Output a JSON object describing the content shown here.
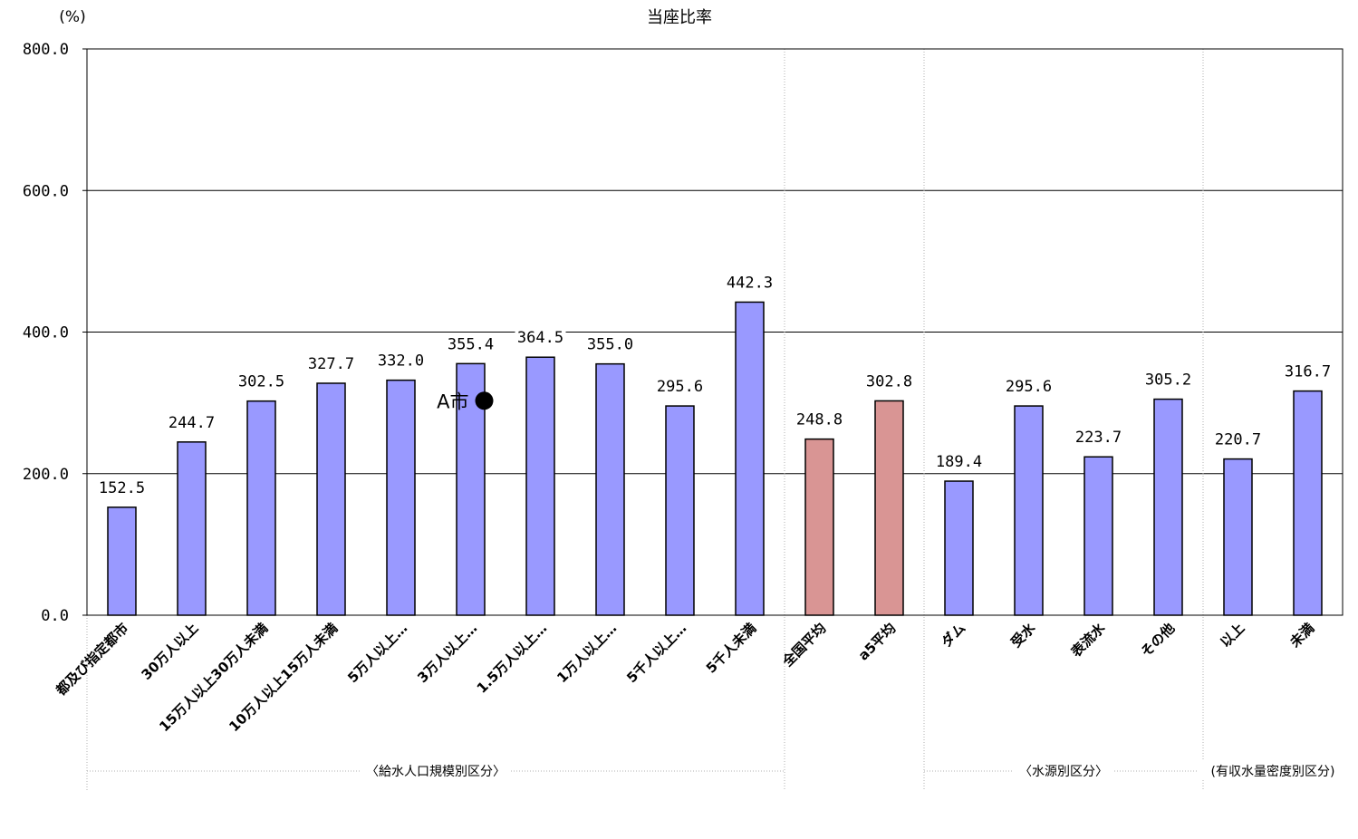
{
  "chart_data": {
    "type": "bar",
    "title": "当座比率",
    "ylabel": "(%)",
    "xlabel": "",
    "ylim": [
      0,
      800
    ],
    "yticks": [
      "0.0",
      "200.0",
      "400.0",
      "600.0",
      "800.0"
    ],
    "ytick_values": [
      0,
      200,
      400,
      600,
      800
    ],
    "grid": true,
    "categories": [
      "都及び指定都市",
      "30万人以上",
      "15万人以上30万人未満",
      "10万人以上15万人未満",
      "5万人以上…",
      "3万人以上…",
      "1.5万人以上…",
      "1万人以上…",
      "5千人以上…",
      "5千人未満",
      "全国平均",
      "a5平均",
      "ダム",
      "受水",
      "表流水",
      "その他",
      "以上",
      "未満"
    ],
    "values": [
      152.5,
      244.7,
      302.5,
      327.7,
      332.0,
      355.4,
      364.5,
      355.0,
      295.6,
      442.3,
      248.8,
      302.8,
      189.4,
      295.6,
      223.7,
      305.2,
      220.7,
      316.7
    ],
    "value_labels": [
      "152.5",
      "244.7",
      "302.5",
      "327.7",
      "332.0",
      "355.4",
      "364.5",
      "355.0",
      "295.6",
      "442.3",
      "248.8",
      "302.8",
      "189.4",
      "295.6",
      "223.7",
      "305.2",
      "220.7",
      "316.7"
    ],
    "bar_kinds": [
      "group",
      "group",
      "group",
      "group",
      "group",
      "group",
      "group",
      "group",
      "group",
      "group",
      "average",
      "average",
      "group",
      "group",
      "group",
      "group",
      "group",
      "group"
    ],
    "colors": {
      "group": "#9999ff",
      "average": "#d99594",
      "grid": "#000000",
      "separator": "#b0b0b0"
    },
    "groups": [
      {
        "label": "〈給水人口規模別区分〉",
        "first": 0,
        "last": 9
      },
      {
        "label": "〈水源別区分〉",
        "first": 12,
        "last": 15
      },
      {
        "label": "(有収水量密度別区分)",
        "first": 16,
        "last": 17
      }
    ],
    "marker": {
      "label": "A市",
      "category_index": 5,
      "value": 303
    }
  }
}
